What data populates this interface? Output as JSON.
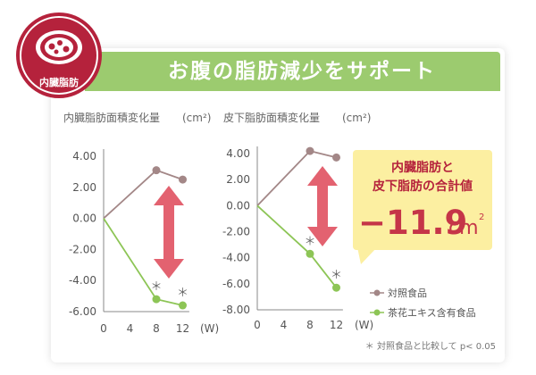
{
  "badge": {
    "label": "内臓脂肪",
    "icon": "visceral-fat-icon"
  },
  "banner": {
    "title": "お腹の脂肪減少をサポート"
  },
  "chart_data": [
    {
      "type": "line",
      "title": "内臓脂肪面積変化量",
      "unit": "(cm²)",
      "x": [
        0,
        8,
        12
      ],
      "xticks": [
        "0",
        "4",
        "8",
        "12"
      ],
      "xunit": "(W)",
      "ylim": [
        -6,
        4
      ],
      "yticks": [
        "4.00",
        "2.00",
        "0.00",
        "-2.00",
        "-4.00",
        "-6.00"
      ],
      "series": [
        {
          "name": "対照食品",
          "values": [
            0,
            3.1,
            2.5
          ],
          "color": "#a38787"
        },
        {
          "name": "茶花エキス含有食品",
          "values": [
            0,
            -5.2,
            -5.6
          ],
          "color": "#8dc556",
          "sig": [
            false,
            true,
            true
          ]
        }
      ]
    },
    {
      "type": "line",
      "title": "皮下脂肪面積変化量",
      "unit": "(cm²)",
      "x": [
        0,
        8,
        12
      ],
      "xticks": [
        "0",
        "4",
        "8",
        "12"
      ],
      "xunit": "(W)",
      "ylim": [
        -8,
        4
      ],
      "yticks": [
        "4.00",
        "2.00",
        "0.00",
        "-2.00",
        "-4.00",
        "-6.00",
        "-8.00"
      ],
      "series": [
        {
          "name": "対照食品",
          "values": [
            0,
            4.2,
            3.7
          ],
          "color": "#a38787"
        },
        {
          "name": "茶花エキス含有食品",
          "values": [
            0,
            -3.7,
            -6.3
          ],
          "color": "#8dc556",
          "sig": [
            false,
            true,
            true
          ]
        }
      ]
    }
  ],
  "callout": {
    "line1": "内臓脂肪と",
    "line2": "皮下脂肪の合計値",
    "value": "−11.9",
    "unit": "cm",
    "unit_sup": "2"
  },
  "legend": {
    "control": "対照食品",
    "test": "茶花エキス含有食品"
  },
  "sig_mark": "＊",
  "footnote": "＊ 対照食品と比較して p< 0.05",
  "colors": {
    "banner": "#9ccb6f",
    "badge": "#b5223c",
    "callout": "#fcefa1",
    "arrow": "#e36270",
    "value": "#c53548"
  }
}
